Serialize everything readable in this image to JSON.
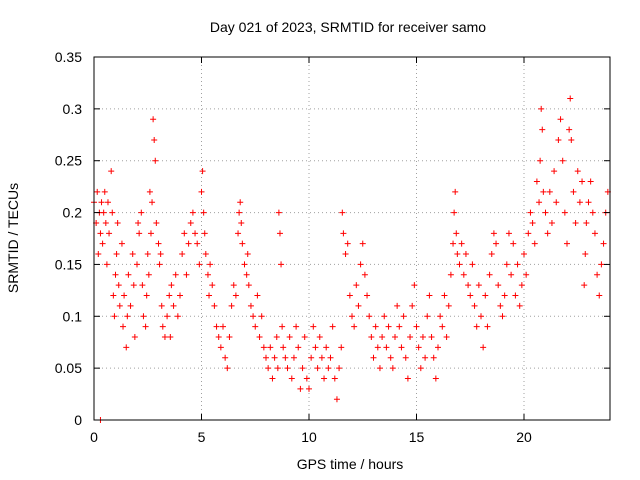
{
  "chart_data": {
    "type": "scatter",
    "title": "Day 021 of 2023, SRMTID for receiver samo",
    "xlabel": "GPS time / hours",
    "ylabel": "SRMTID / TECUs",
    "xlim": [
      0,
      24
    ],
    "ylim": [
      0,
      0.35
    ],
    "x_ticks": [
      0,
      5,
      10,
      15,
      20
    ],
    "x_tick_labels": [
      "0",
      "5",
      "10",
      "15",
      "20"
    ],
    "y_ticks": [
      0,
      0.05,
      0.1,
      0.15,
      0.2,
      0.25,
      0.3,
      0.35
    ],
    "y_tick_labels": [
      "0",
      "0.05",
      "0.1",
      "0.15",
      "0.2",
      "0.25",
      "0.3",
      "0.35"
    ],
    "grid": true,
    "marker": "+",
    "color": "#ff0000",
    "series": [
      {
        "name": "SRMTID",
        "points": [
          [
            0.0,
            0.21
          ],
          [
            0.1,
            0.19
          ],
          [
            0.15,
            0.22
          ],
          [
            0.2,
            0.16
          ],
          [
            0.25,
            0.2
          ],
          [
            0.3,
            0.18
          ],
          [
            0.35,
            0.21
          ],
          [
            0.4,
            0.17
          ],
          [
            0.45,
            0.2
          ],
          [
            0.5,
            0.22
          ],
          [
            0.55,
            0.19
          ],
          [
            0.6,
            0.15
          ],
          [
            0.65,
            0.21
          ],
          [
            0.7,
            0.18
          ],
          [
            0.8,
            0.24
          ],
          [
            0.85,
            0.2
          ],
          [
            0.9,
            0.12
          ],
          [
            0.95,
            0.1
          ],
          [
            1.0,
            0.14
          ],
          [
            1.05,
            0.16
          ],
          [
            1.1,
            0.19
          ],
          [
            1.15,
            0.13
          ],
          [
            1.2,
            0.11
          ],
          [
            1.3,
            0.17
          ],
          [
            1.35,
            0.09
          ],
          [
            1.4,
            0.12
          ],
          [
            1.5,
            0.07
          ],
          [
            1.55,
            0.1
          ],
          [
            1.6,
            0.14
          ],
          [
            1.7,
            0.11
          ],
          [
            1.8,
            0.16
          ],
          [
            1.85,
            0.13
          ],
          [
            1.9,
            0.08
          ],
          [
            2.0,
            0.15
          ],
          [
            2.05,
            0.19
          ],
          [
            2.1,
            0.18
          ],
          [
            2.2,
            0.2
          ],
          [
            2.25,
            0.13
          ],
          [
            2.3,
            0.1
          ],
          [
            2.4,
            0.09
          ],
          [
            2.45,
            0.12
          ],
          [
            2.5,
            0.16
          ],
          [
            2.55,
            0.14
          ],
          [
            2.6,
            0.22
          ],
          [
            2.65,
            0.18
          ],
          [
            2.7,
            0.21
          ],
          [
            2.75,
            0.29
          ],
          [
            2.8,
            0.27
          ],
          [
            2.85,
            0.25
          ],
          [
            2.9,
            0.19
          ],
          [
            3.0,
            0.17
          ],
          [
            3.05,
            0.15
          ],
          [
            3.1,
            0.16
          ],
          [
            3.15,
            0.11
          ],
          [
            3.2,
            0.09
          ],
          [
            3.3,
            0.08
          ],
          [
            3.4,
            0.1
          ],
          [
            3.5,
            0.12
          ],
          [
            3.55,
            0.08
          ],
          [
            3.6,
            0.13
          ],
          [
            3.7,
            0.11
          ],
          [
            3.8,
            0.14
          ],
          [
            3.9,
            0.1
          ],
          [
            4.0,
            0.12
          ],
          [
            4.1,
            0.16
          ],
          [
            4.2,
            0.18
          ],
          [
            4.3,
            0.14
          ],
          [
            4.4,
            0.17
          ],
          [
            4.5,
            0.19
          ],
          [
            4.6,
            0.2
          ],
          [
            4.7,
            0.18
          ],
          [
            4.8,
            0.17
          ],
          [
            4.9,
            0.15
          ],
          [
            5.0,
            0.22
          ],
          [
            5.05,
            0.24
          ],
          [
            5.1,
            0.2
          ],
          [
            5.15,
            0.18
          ],
          [
            5.2,
            0.16
          ],
          [
            5.3,
            0.14
          ],
          [
            5.35,
            0.12
          ],
          [
            5.4,
            0.15
          ],
          [
            5.5,
            0.13
          ],
          [
            5.6,
            0.11
          ],
          [
            5.7,
            0.09
          ],
          [
            5.8,
            0.08
          ],
          [
            5.9,
            0.07
          ],
          [
            6.0,
            0.09
          ],
          [
            6.1,
            0.06
          ],
          [
            6.2,
            0.05
          ],
          [
            6.3,
            0.08
          ],
          [
            6.4,
            0.11
          ],
          [
            6.5,
            0.13
          ],
          [
            6.6,
            0.12
          ],
          [
            6.7,
            0.18
          ],
          [
            6.75,
            0.2
          ],
          [
            6.8,
            0.21
          ],
          [
            6.85,
            0.19
          ],
          [
            6.9,
            0.17
          ],
          [
            7.0,
            0.15
          ],
          [
            7.1,
            0.14
          ],
          [
            7.15,
            0.16
          ],
          [
            7.2,
            0.13
          ],
          [
            7.3,
            0.11
          ],
          [
            7.4,
            0.1
          ],
          [
            7.5,
            0.09
          ],
          [
            7.6,
            0.12
          ],
          [
            7.7,
            0.08
          ],
          [
            7.8,
            0.1
          ],
          [
            7.9,
            0.07
          ],
          [
            8.0,
            0.06
          ],
          [
            8.1,
            0.05
          ],
          [
            8.2,
            0.07
          ],
          [
            8.3,
            0.04
          ],
          [
            8.4,
            0.06
          ],
          [
            8.5,
            0.08
          ],
          [
            8.55,
            0.05
          ],
          [
            8.6,
            0.2
          ],
          [
            8.65,
            0.18
          ],
          [
            8.7,
            0.15
          ],
          [
            8.75,
            0.09
          ],
          [
            8.8,
            0.07
          ],
          [
            8.9,
            0.06
          ],
          [
            9.0,
            0.05
          ],
          [
            9.1,
            0.08
          ],
          [
            9.2,
            0.04
          ],
          [
            9.3,
            0.06
          ],
          [
            9.4,
            0.09
          ],
          [
            9.5,
            0.07
          ],
          [
            9.6,
            0.03
          ],
          [
            9.7,
            0.05
          ],
          [
            9.8,
            0.08
          ],
          [
            9.9,
            0.04
          ],
          [
            10.0,
            0.03
          ],
          [
            10.1,
            0.06
          ],
          [
            10.2,
            0.09
          ],
          [
            10.3,
            0.07
          ],
          [
            10.4,
            0.05
          ],
          [
            10.5,
            0.08
          ],
          [
            10.6,
            0.06
          ],
          [
            10.7,
            0.04
          ],
          [
            10.8,
            0.07
          ],
          [
            10.9,
            0.05
          ],
          [
            11.0,
            0.06
          ],
          [
            11.1,
            0.09
          ],
          [
            11.2,
            0.04
          ],
          [
            11.3,
            0.02
          ],
          [
            11.4,
            0.05
          ],
          [
            11.5,
            0.07
          ],
          [
            11.55,
            0.2
          ],
          [
            11.6,
            0.18
          ],
          [
            11.7,
            0.16
          ],
          [
            11.8,
            0.17
          ],
          [
            11.9,
            0.12
          ],
          [
            12.0,
            0.1
          ],
          [
            12.1,
            0.09
          ],
          [
            12.2,
            0.13
          ],
          [
            12.3,
            0.11
          ],
          [
            12.4,
            0.15
          ],
          [
            12.5,
            0.17
          ],
          [
            12.6,
            0.14
          ],
          [
            12.7,
            0.12
          ],
          [
            12.8,
            0.1
          ],
          [
            12.9,
            0.08
          ],
          [
            13.0,
            0.06
          ],
          [
            13.1,
            0.09
          ],
          [
            13.2,
            0.07
          ],
          [
            13.3,
            0.05
          ],
          [
            13.4,
            0.08
          ],
          [
            13.5,
            0.1
          ],
          [
            13.6,
            0.07
          ],
          [
            13.7,
            0.09
          ],
          [
            13.8,
            0.06
          ],
          [
            13.9,
            0.05
          ],
          [
            14.0,
            0.08
          ],
          [
            14.1,
            0.11
          ],
          [
            14.2,
            0.09
          ],
          [
            14.3,
            0.07
          ],
          [
            14.4,
            0.1
          ],
          [
            14.5,
            0.06
          ],
          [
            14.6,
            0.04
          ],
          [
            14.7,
            0.08
          ],
          [
            14.8,
            0.11
          ],
          [
            14.9,
            0.13
          ],
          [
            15.0,
            0.09
          ],
          [
            15.1,
            0.07
          ],
          [
            15.2,
            0.05
          ],
          [
            15.3,
            0.08
          ],
          [
            15.4,
            0.06
          ],
          [
            15.5,
            0.1
          ],
          [
            15.6,
            0.12
          ],
          [
            15.7,
            0.08
          ],
          [
            15.8,
            0.06
          ],
          [
            15.9,
            0.04
          ],
          [
            16.0,
            0.07
          ],
          [
            16.1,
            0.1
          ],
          [
            16.2,
            0.09
          ],
          [
            16.3,
            0.12
          ],
          [
            16.4,
            0.08
          ],
          [
            16.5,
            0.11
          ],
          [
            16.6,
            0.14
          ],
          [
            16.7,
            0.17
          ],
          [
            16.75,
            0.2
          ],
          [
            16.8,
            0.22
          ],
          [
            16.85,
            0.18
          ],
          [
            16.9,
            0.16
          ],
          [
            17.0,
            0.15
          ],
          [
            17.1,
            0.17
          ],
          [
            17.2,
            0.14
          ],
          [
            17.3,
            0.16
          ],
          [
            17.4,
            0.13
          ],
          [
            17.5,
            0.12
          ],
          [
            17.6,
            0.15
          ],
          [
            17.7,
            0.11
          ],
          [
            17.8,
            0.09
          ],
          [
            17.9,
            0.13
          ],
          [
            18.0,
            0.1
          ],
          [
            18.1,
            0.07
          ],
          [
            18.2,
            0.12
          ],
          [
            18.3,
            0.09
          ],
          [
            18.4,
            0.14
          ],
          [
            18.5,
            0.16
          ],
          [
            18.6,
            0.18
          ],
          [
            18.7,
            0.17
          ],
          [
            18.8,
            0.13
          ],
          [
            18.9,
            0.11
          ],
          [
            19.0,
            0.1
          ],
          [
            19.1,
            0.12
          ],
          [
            19.2,
            0.15
          ],
          [
            19.3,
            0.18
          ],
          [
            19.4,
            0.14
          ],
          [
            19.5,
            0.17
          ],
          [
            19.6,
            0.12
          ],
          [
            19.7,
            0.15
          ],
          [
            19.8,
            0.11
          ],
          [
            19.9,
            0.13
          ],
          [
            20.0,
            0.16
          ],
          [
            20.1,
            0.14
          ],
          [
            20.2,
            0.18
          ],
          [
            20.3,
            0.2
          ],
          [
            20.4,
            0.19
          ],
          [
            20.5,
            0.17
          ],
          [
            20.6,
            0.23
          ],
          [
            20.7,
            0.21
          ],
          [
            20.75,
            0.25
          ],
          [
            20.8,
            0.3
          ],
          [
            20.85,
            0.28
          ],
          [
            20.9,
            0.22
          ],
          [
            21.0,
            0.2
          ],
          [
            21.1,
            0.18
          ],
          [
            21.2,
            0.22
          ],
          [
            21.3,
            0.19
          ],
          [
            21.4,
            0.24
          ],
          [
            21.5,
            0.21
          ],
          [
            21.6,
            0.27
          ],
          [
            21.7,
            0.29
          ],
          [
            21.8,
            0.25
          ],
          [
            21.9,
            0.2
          ],
          [
            22.0,
            0.17
          ],
          [
            22.1,
            0.28
          ],
          [
            22.15,
            0.31
          ],
          [
            22.2,
            0.27
          ],
          [
            22.3,
            0.22
          ],
          [
            22.4,
            0.19
          ],
          [
            22.5,
            0.24
          ],
          [
            22.6,
            0.21
          ],
          [
            22.7,
            0.23
          ],
          [
            22.8,
            0.13
          ],
          [
            22.85,
            0.16
          ],
          [
            22.9,
            0.19
          ],
          [
            23.0,
            0.21
          ],
          [
            23.1,
            0.23
          ],
          [
            23.2,
            0.2
          ],
          [
            23.3,
            0.18
          ],
          [
            23.4,
            0.14
          ],
          [
            23.5,
            0.12
          ],
          [
            23.6,
            0.15
          ],
          [
            23.7,
            0.17
          ],
          [
            23.8,
            0.2
          ],
          [
            23.9,
            0.22
          ],
          [
            0.3,
            0.0
          ]
        ]
      }
    ]
  }
}
